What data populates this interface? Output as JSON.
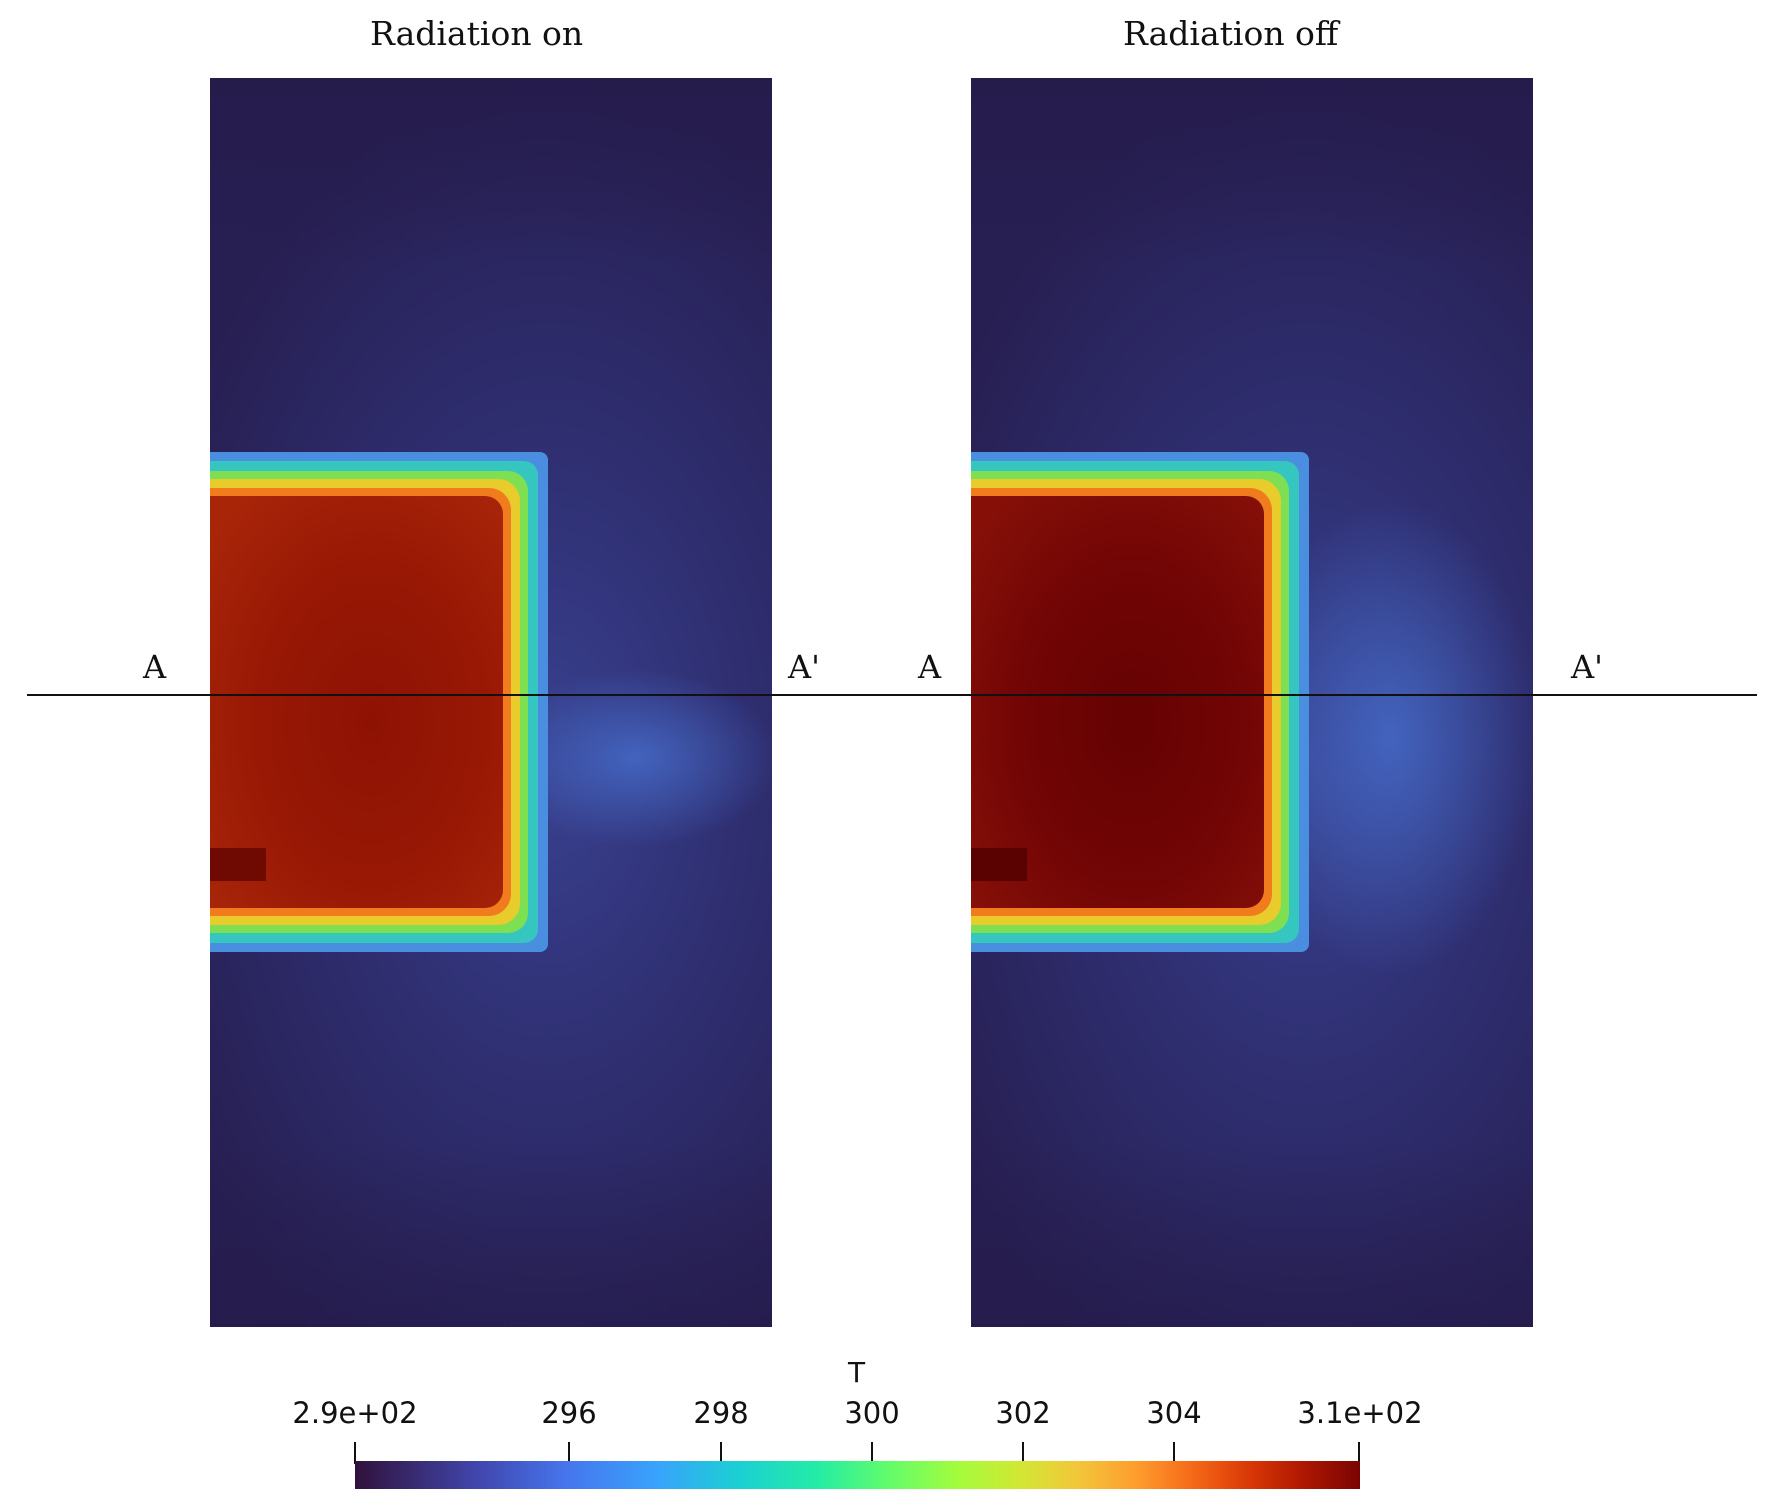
{
  "panels": {
    "left": {
      "title": "Radiation on",
      "marker_left": "A",
      "marker_right": "A'"
    },
    "right": {
      "title": "Radiation off",
      "marker_left": "A",
      "marker_right": "A'"
    }
  },
  "colorbar": {
    "title": "T",
    "ticks": [
      "2.9e+02",
      "296",
      "298",
      "300",
      "302",
      "304",
      "3.1e+02"
    ],
    "colormap": "turbo"
  }
}
